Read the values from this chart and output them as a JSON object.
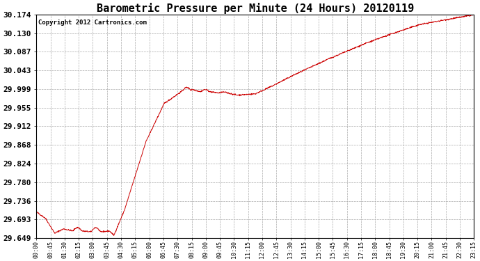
{
  "title": "Barometric Pressure per Minute (24 Hours) 20120119",
  "copyright_text": "Copyright 2012 Cartronics.com",
  "line_color": "#cc0000",
  "background_color": "#ffffff",
  "plot_bg_color": "#ffffff",
  "grid_color": "#aaaaaa",
  "title_fontsize": 11,
  "copyright_fontsize": 6.5,
  "tick_fontsize": 6,
  "ytick_fontsize": 8,
  "y_min": 29.649,
  "y_max": 30.174,
  "yticks": [
    29.649,
    29.693,
    29.736,
    29.78,
    29.824,
    29.868,
    29.912,
    29.955,
    29.999,
    30.043,
    30.087,
    30.13,
    30.174
  ],
  "xtick_labels": [
    "00:00",
    "00:45",
    "01:30",
    "02:15",
    "03:00",
    "03:45",
    "04:30",
    "05:15",
    "06:00",
    "06:45",
    "07:30",
    "08:15",
    "09:00",
    "09:45",
    "10:30",
    "11:15",
    "12:00",
    "12:45",
    "13:30",
    "14:15",
    "15:00",
    "15:45",
    "16:30",
    "17:15",
    "18:00",
    "18:45",
    "19:30",
    "20:15",
    "21:00",
    "21:45",
    "22:30",
    "23:15"
  ]
}
